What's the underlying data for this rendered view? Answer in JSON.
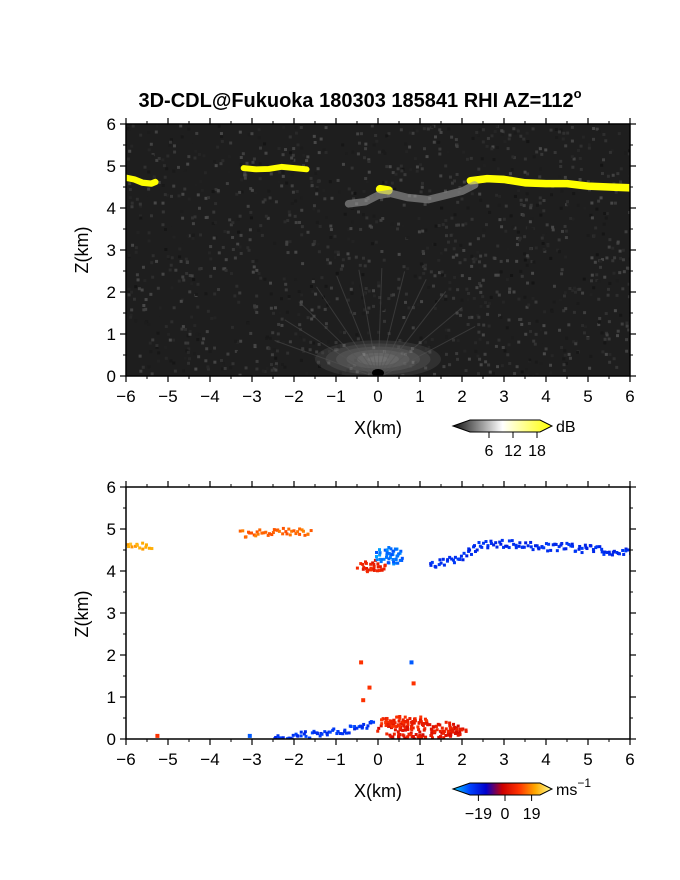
{
  "figure": {
    "title": "3D-CDL@Fukuoka 180303 185841 RHI AZ=112",
    "title_sup": "o"
  },
  "chart_data": [
    {
      "type": "heatmap",
      "name": "backscatter-intensity",
      "xlabel": "X(km)",
      "ylabel": "Z(km)",
      "xlim": [
        -6,
        6
      ],
      "ylim": [
        0,
        6
      ],
      "x_ticks": [
        -6,
        -5,
        -4,
        -3,
        -2,
        -1,
        0,
        1,
        2,
        3,
        4,
        5,
        6
      ],
      "y_ticks": [
        0,
        1,
        2,
        3,
        4,
        5,
        6
      ],
      "grid": false,
      "background": "#202020",
      "colorbar": {
        "label": "dB",
        "ticks": [
          6,
          12,
          18
        ],
        "range": [
          0,
          20
        ],
        "colors": [
          "#101010",
          "#ffffff",
          "#ffff00"
        ]
      },
      "features": [
        {
          "kind": "layer",
          "color": "#ffff00",
          "points": [
            [
              -6.0,
              4.72
            ],
            [
              -5.8,
              4.68
            ],
            [
              -5.6,
              4.6
            ],
            [
              -5.4,
              4.58
            ],
            [
              -5.3,
              4.62
            ]
          ],
          "thickness": 0.15
        },
        {
          "kind": "layer",
          "color": "#ffff00",
          "points": [
            [
              -3.2,
              4.95
            ],
            [
              -2.9,
              4.92
            ],
            [
              -2.6,
              4.93
            ],
            [
              -2.3,
              4.98
            ],
            [
              -2.0,
              4.95
            ],
            [
              -1.7,
              4.92
            ]
          ],
          "thickness": 0.14
        },
        {
          "kind": "layer",
          "color": "#ffff00",
          "points": [
            [
              2.2,
              4.65
            ],
            [
              2.6,
              4.7
            ],
            [
              3.0,
              4.68
            ],
            [
              3.5,
              4.6
            ],
            [
              4.0,
              4.58
            ],
            [
              4.5,
              4.58
            ],
            [
              5.0,
              4.52
            ],
            [
              5.5,
              4.5
            ],
            [
              6.0,
              4.48
            ]
          ],
          "thickness": 0.18
        },
        {
          "kind": "layer",
          "color": "#ffff00",
          "points": [
            [
              0.05,
              4.45
            ],
            [
              0.25,
              4.42
            ]
          ],
          "thickness": 0.2
        },
        {
          "kind": "layer",
          "color": "#9a9a9a",
          "points": [
            [
              -0.7,
              4.1
            ],
            [
              -0.3,
              4.15
            ],
            [
              0.0,
              4.3
            ],
            [
              0.3,
              4.35
            ],
            [
              0.7,
              4.25
            ],
            [
              1.2,
              4.2
            ],
            [
              1.6,
              4.3
            ],
            [
              2.0,
              4.4
            ],
            [
              2.3,
              4.55
            ]
          ],
          "thickness": 0.18
        },
        {
          "kind": "blob",
          "color": "#b8b8b8",
          "center": [
            0.0,
            0.4
          ],
          "radius": [
            1.5,
            0.45
          ]
        }
      ]
    },
    {
      "type": "scatter",
      "name": "doppler-velocity",
      "xlabel": "X(km)",
      "ylabel": "Z(km)",
      "xlim": [
        -6,
        6
      ],
      "ylim": [
        0,
        6
      ],
      "x_ticks": [
        -6,
        -5,
        -4,
        -3,
        -2,
        -1,
        0,
        1,
        2,
        3,
        4,
        5,
        6
      ],
      "y_ticks": [
        0,
        1,
        2,
        3,
        4,
        5,
        6
      ],
      "grid": false,
      "colorbar": {
        "label": "ms",
        "label_sup": "−1",
        "ticks": [
          -19,
          0,
          19
        ],
        "tick_labels": [
          "−19",
          "0",
          "19"
        ],
        "range": [
          -25,
          25
        ],
        "colors": [
          "#00ccff",
          "#0044ff",
          "#0000cc",
          "#cc0000",
          "#ff3300",
          "#ffaa00",
          "#ffff99"
        ]
      },
      "features": [
        {
          "kind": "layer",
          "velocity": 17,
          "points": [
            [
              -6.0,
              4.68
            ],
            [
              -5.7,
              4.64
            ],
            [
              -5.4,
              4.6
            ]
          ],
          "thickness": 0.15
        },
        {
          "kind": "layer",
          "velocity": 12,
          "points": [
            [
              -3.3,
              4.92
            ],
            [
              -3.0,
              4.92
            ],
            [
              -2.7,
              4.95
            ],
            [
              -2.4,
              4.98
            ],
            [
              -2.0,
              4.96
            ],
            [
              -1.6,
              4.95
            ]
          ],
          "thickness": 0.16
        },
        {
          "kind": "layer",
          "velocity": -14,
          "points": [
            [
              1.2,
              4.15
            ],
            [
              1.6,
              4.25
            ],
            [
              2.0,
              4.4
            ],
            [
              2.4,
              4.65
            ],
            [
              3.0,
              4.68
            ],
            [
              3.5,
              4.62
            ],
            [
              4.0,
              4.6
            ],
            [
              4.5,
              4.6
            ],
            [
              5.0,
              4.55
            ],
            [
              5.5,
              4.5
            ],
            [
              6.0,
              4.48
            ]
          ],
          "thickness": 0.2
        },
        {
          "kind": "patch",
          "velocity": 5,
          "center": [
            -0.2,
            4.15
          ],
          "radius": [
            0.35,
            0.15
          ]
        },
        {
          "kind": "patch",
          "velocity": -20,
          "center": [
            0.25,
            4.4
          ],
          "radius": [
            0.35,
            0.22
          ]
        },
        {
          "kind": "layer",
          "velocity": -15,
          "points": [
            [
              -2.5,
              0.05
            ],
            [
              -2.0,
              0.1
            ],
            [
              -1.5,
              0.15
            ],
            [
              -1.0,
              0.2
            ],
            [
              -0.5,
              0.3
            ],
            [
              -0.1,
              0.45
            ]
          ],
          "thickness": 0.18
        },
        {
          "kind": "patch",
          "velocity": 4,
          "center": [
            1.0,
            0.25
          ],
          "radius": [
            1.1,
            0.22
          ]
        },
        {
          "kind": "patch",
          "velocity": 6,
          "center": [
            0.6,
            0.45
          ],
          "radius": [
            0.6,
            0.15
          ]
        },
        {
          "kind": "dot",
          "velocity": 8,
          "points": [
            [
              -0.45,
              1.8
            ],
            [
              -0.25,
              1.2
            ],
            [
              0.8,
              1.3
            ],
            [
              -0.4,
              0.9
            ],
            [
              -5.3,
              0.05
            ]
          ]
        },
        {
          "kind": "dot",
          "velocity": -18,
          "points": [
            [
              0.75,
              1.8
            ],
            [
              -3.1,
              0.05
            ]
          ]
        }
      ]
    }
  ]
}
